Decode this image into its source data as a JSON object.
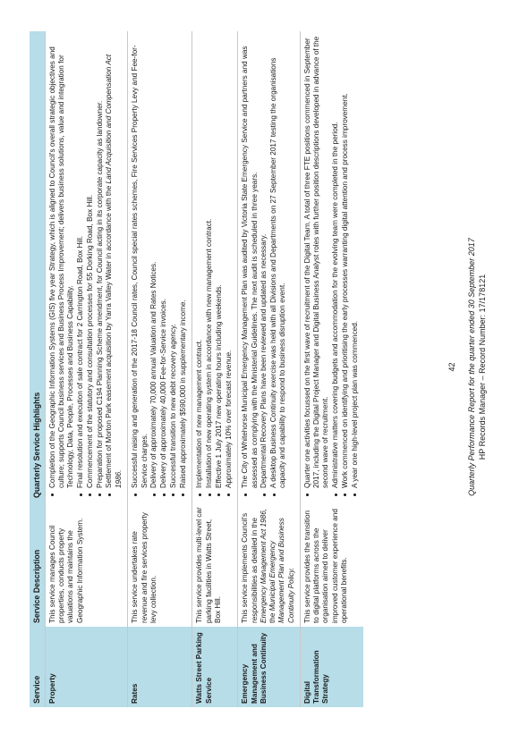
{
  "table": {
    "headers": [
      "Service",
      "Service Description",
      "Quarterly Service Highlights"
    ],
    "rows": [
      {
        "service": "Property",
        "description": [
          {
            "text": "This service manages Council properties, conducts property valuations and maintains the Geographic Information System.",
            "italic": false
          }
        ],
        "highlights": [
          [
            {
              "text": "Completion of the Geographic Information Systems (GIS) five year Strategy, which is aligned to Council's overall strategic objectives and culture; supports Council business services and Business Process Improvement; delivers business solutions, value and integration for Technology, Data, People, Processes and Business Capability.",
              "italic": false
            }
          ],
          [
            {
              "text": "Final resolution and execution of sale contract for 2 Carrington Road, Box Hill.",
              "italic": false
            }
          ],
          [
            {
              "text": "Commencement of the statutory and consultation processes for 55 Dorking Road, Box Hill.",
              "italic": false
            }
          ],
          [
            {
              "text": "Preparation for proposed C194 Planning Scheme amendment, for Council acting in its corporate capacity as landowner.",
              "italic": false
            }
          ],
          [
            {
              "text": "Settlement of Morton Park easement acquisition by Yarra Valley Water in accordance with the ",
              "italic": false
            },
            {
              "text": "Land Acquisition and Compensation Act 1986.",
              "italic": true
            }
          ]
        ]
      },
      {
        "service": "Rates",
        "description": [
          {
            "text": "This service undertakes rate revenue and fire services property levy collection.",
            "italic": false
          }
        ],
        "highlights": [
          [
            {
              "text": "Successful raising and generation of the 2017-18 Council rates, Council special rates schemes, Fire Services Property Levy and Fee-for-Service charges.",
              "italic": false
            }
          ],
          [
            {
              "text": "Delivery of approximately 70,000 annual Valuation and Rates Notices.",
              "italic": false
            }
          ],
          [
            {
              "text": "Delivery of approximately 40,000 Fee-for-Service invoices.",
              "italic": false
            }
          ],
          [
            {
              "text": "Successful transition to new debt recovery agency.",
              "italic": false
            }
          ],
          [
            {
              "text": "Raised approximately $590,000 in supplementary income.",
              "italic": false
            }
          ]
        ]
      },
      {
        "service": "Watts Street Parking Service",
        "description": [
          {
            "text": "This service provides multi-level car parking facilities in Watts Street, Box Hill.",
            "italic": false
          }
        ],
        "highlights": [
          [
            {
              "text": "Implementation of new management contract.",
              "italic": false
            }
          ],
          [
            {
              "text": "Installation of new operating system in accordance with new management contract.",
              "italic": false
            }
          ],
          [
            {
              "text": "Effective 1 July 2017 new operating hours including weekends.",
              "italic": false
            }
          ],
          [
            {
              "text": "Approximately 10% over forecast revenue.",
              "italic": false
            }
          ]
        ]
      },
      {
        "service": "Emergency Management and Business Continuity",
        "description": [
          {
            "text": "This service implements Council's responsibilities as detailed in the ",
            "italic": false
          },
          {
            "text": "Emergency Management Act 1986,",
            "italic": true
          },
          {
            "text": " the ",
            "italic": false
          },
          {
            "text": "Municipal Emergency Management Plan and Business Continuity Policy.",
            "italic": true
          }
        ],
        "highlights": [
          [
            {
              "text": "The City of Whitehorse Municipal Emergency Management Plan was audited by Victoria State Emergency Service and partners and was assessed as complying with the Ministerial Guidelines. The next audit is scheduled in three years.",
              "italic": false
            }
          ],
          [
            {
              "text": "Departmental Recovery Plans have been reviewed and updated as necessary.",
              "italic": false
            }
          ],
          [
            {
              "text": "A desktop Business Continuity exercise was held with all Divisions and Departments on 27 September 2017 testing the organisations capacity and capability to respond to business disruption event.",
              "italic": false
            }
          ]
        ]
      },
      {
        "service": "Digital Transformation Strategy",
        "description": [
          {
            "text": "This service provides the transition to digital platforms across the organisation aimed to deliver improved customer experience and operational benefits.",
            "italic": false
          }
        ],
        "highlights": [
          [
            {
              "text": "Quarter one activities focussed on the first wave of recruitment of the Digital Team. A total of three FTE positions commenced in September 2017, including the Digital Project Manager and Digital Business Analyst roles with further position descriptions developed in advance of the second wave of recruitment.",
              "italic": false
            }
          ],
          [
            {
              "text": "Administrative matters covering budgets and accommodation for the evolving team were completed in the period.",
              "italic": false
            }
          ],
          [
            {
              "text": "Work commenced on identifying and prioritising the early processes warranting digital attention and process improvement.",
              "italic": false
            }
          ],
          [
            {
              "text": "A year one high-level project plan was commenced.",
              "italic": false
            }
          ]
        ]
      }
    ]
  },
  "page_number": "42",
  "footer": {
    "title": "Quarterly Performance Report for the quarter ended 30 September 2017",
    "record": "HP Records Manager – Record Number: 17/178121"
  }
}
